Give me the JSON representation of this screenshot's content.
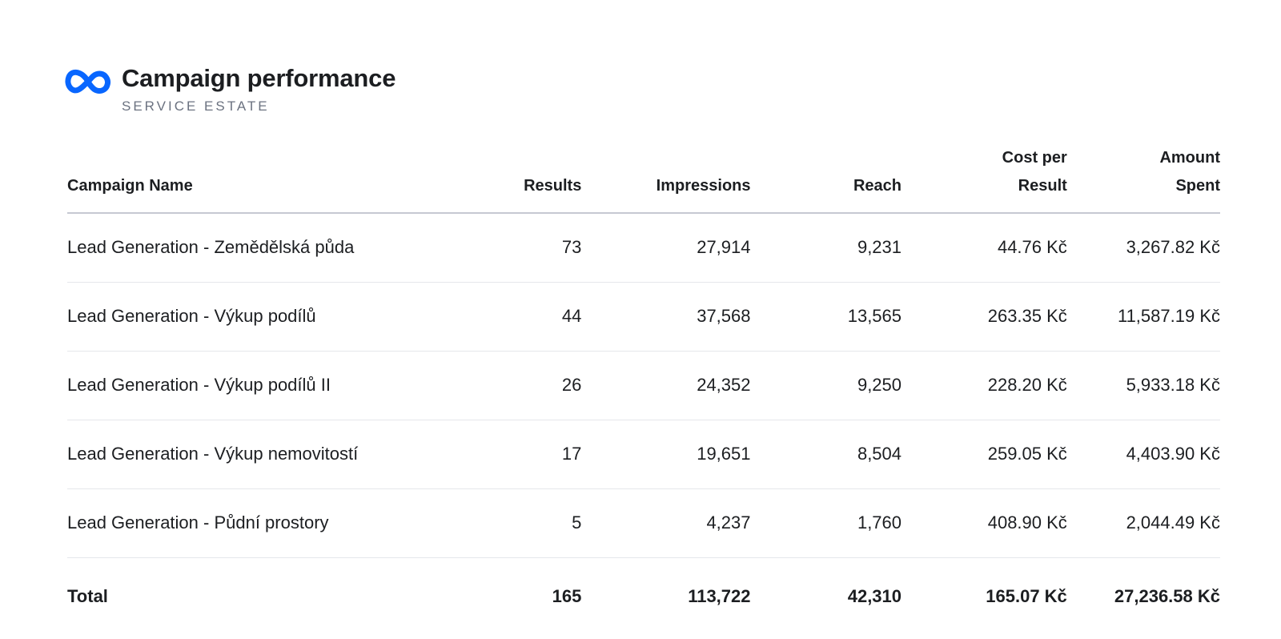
{
  "header": {
    "logo_icon": "meta-infinity-icon",
    "brand_color": "#0866ff",
    "title": "Campaign performance",
    "subtitle": "SERVICE ESTATE"
  },
  "table": {
    "columns": [
      {
        "line1": "Campaign Name",
        "line2": ""
      },
      {
        "line1": "Results",
        "line2": ""
      },
      {
        "line1": "Impressions",
        "line2": ""
      },
      {
        "line1": "Reach",
        "line2": ""
      },
      {
        "line1": "Cost per",
        "line2": "Result"
      },
      {
        "line1": "Amount",
        "line2": "Spent"
      }
    ],
    "rows": [
      {
        "name": "Lead Generation - Zemědělská půda",
        "results": "73",
        "impressions": "27,914",
        "reach": "9,231",
        "cost": "44.76 Kč",
        "spent": "3,267.82 Kč"
      },
      {
        "name": "Lead Generation - Výkup podílů",
        "results": "44",
        "impressions": "37,568",
        "reach": "13,565",
        "cost": "263.35 Kč",
        "spent": "11,587.19 Kč"
      },
      {
        "name": "Lead Generation - Výkup podílů II",
        "results": "26",
        "impressions": "24,352",
        "reach": "9,250",
        "cost": "228.20 Kč",
        "spent": "5,933.18 Kč"
      },
      {
        "name": "Lead Generation - Výkup nemovitostí",
        "results": "17",
        "impressions": "19,651",
        "reach": "8,504",
        "cost": "259.05 Kč",
        "spent": "4,403.90 Kč"
      },
      {
        "name": "Lead Generation - Půdní prostory",
        "results": "5",
        "impressions": "4,237",
        "reach": "1,760",
        "cost": "408.90 Kč",
        "spent": "2,044.49 Kč"
      }
    ],
    "total": {
      "name": "Total",
      "results": "165",
      "impressions": "113,722",
      "reach": "42,310",
      "cost": "165.07 Kč",
      "spent": "27,236.58 Kč"
    }
  }
}
